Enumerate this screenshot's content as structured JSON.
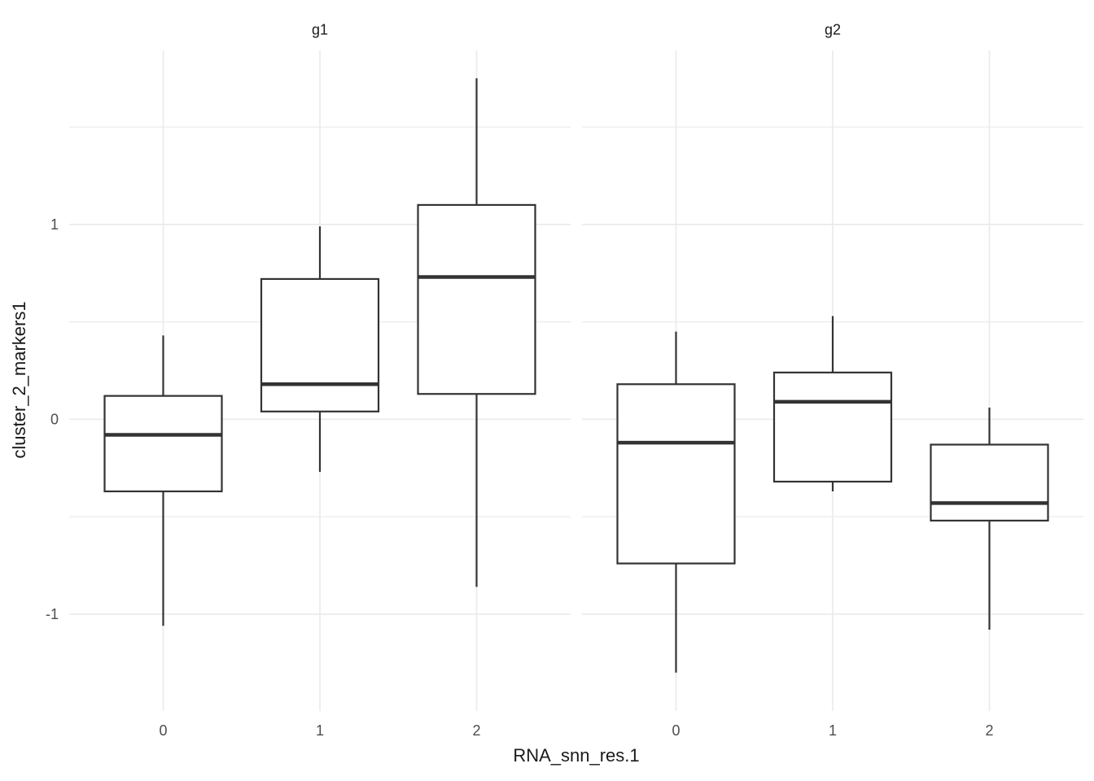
{
  "figure": {
    "background": "#ffffff",
    "x_axis": {
      "title": "RNA_snn_res.1",
      "tick_labels": [
        "0",
        "1",
        "2"
      ]
    },
    "y_axis": {
      "title": "cluster_2_markers1",
      "tick_labels": [
        "1",
        "0",
        "-1"
      ],
      "tick_values": [
        1,
        0,
        -1
      ]
    }
  },
  "chart_data": {
    "type": "boxplot",
    "title": "",
    "xlabel": "RNA_snn_res.1",
    "ylabel": "cluster_2_markers1",
    "ylim": [
      -1.5,
      1.89
    ],
    "grid": "on",
    "legend_position": "none",
    "y_major_gridlines": [
      -1,
      0,
      1
    ],
    "y_minor_gridlines": [
      -0.5,
      0.5,
      1.5
    ],
    "categories": [
      "0",
      "1",
      "2"
    ],
    "facets": [
      {
        "label": "g1",
        "boxes": [
          {
            "category": "0",
            "whisker_low": -1.06,
            "q1": -0.37,
            "median": -0.08,
            "q3": 0.12,
            "whisker_high": 0.43
          },
          {
            "category": "1",
            "whisker_low": -0.27,
            "q1": 0.04,
            "median": 0.18,
            "q3": 0.72,
            "whisker_high": 0.99
          },
          {
            "category": "2",
            "whisker_low": -0.86,
            "q1": 0.13,
            "median": 0.73,
            "q3": 1.1,
            "whisker_high": 1.75
          }
        ]
      },
      {
        "label": "g2",
        "boxes": [
          {
            "category": "0",
            "whisker_low": -1.3,
            "q1": -0.74,
            "median": -0.12,
            "q3": 0.18,
            "whisker_high": 0.45
          },
          {
            "category": "1",
            "whisker_low": -0.37,
            "q1": -0.32,
            "median": 0.09,
            "q3": 0.24,
            "whisker_high": 0.53
          },
          {
            "category": "2",
            "whisker_low": -1.08,
            "q1": -0.52,
            "median": -0.43,
            "q3": -0.13,
            "whisker_high": 0.06
          }
        ]
      }
    ],
    "colors": {
      "box_stroke": "#333333",
      "box_fill": "#ffffff",
      "gridline": "#ebebeb",
      "tick_label": "#4d4d4d",
      "title_text": "#1a1a1a"
    }
  }
}
